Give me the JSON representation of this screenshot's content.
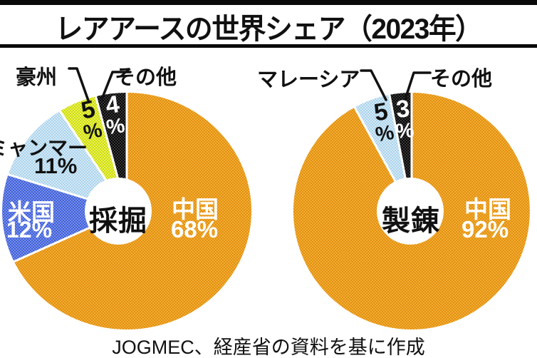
{
  "title": "レアアースの世界シェア（2023年）",
  "source": "JOGMEC、経産省の資料を基に作成",
  "colors": {
    "orange_base": "#F5AE35",
    "orange_dot": "#DE8E0E",
    "blue_base": "#7B92E8",
    "blue_dot": "#3A5BD9",
    "lightblue_base": "#D8ECF8",
    "lightblue_dot": "#A6D0EA",
    "yellow_base": "#EFF463",
    "yellow_dot": "#C8D900",
    "black_base": "#3C3C3C",
    "black_dot": "#000000",
    "text_white": "#ffffff",
    "text_black": "#111111",
    "separator": "#ffffff"
  },
  "chart_data": [
    {
      "type": "pie",
      "center_label": "採掘",
      "slices": [
        {
          "label": "中国",
          "value": 68,
          "pct_text": "68%",
          "color": "orange"
        },
        {
          "label": "米国",
          "value": 12,
          "pct_text": "12%",
          "color": "blue"
        },
        {
          "label": "ミャンマー",
          "value": 11,
          "pct_text": "11%",
          "color": "lightblue"
        },
        {
          "label": "豪州",
          "value": 5,
          "pct_num": "5",
          "pct_sym": "%",
          "color": "yellow"
        },
        {
          "label": "その他",
          "value": 4,
          "pct_num": "4",
          "pct_sym": "%",
          "color": "black"
        }
      ]
    },
    {
      "type": "pie",
      "center_label": "製錬",
      "slices": [
        {
          "label": "中国",
          "value": 92,
          "pct_text": "92%",
          "color": "orange"
        },
        {
          "label": "マレーシア",
          "value": 5,
          "pct_num": "5",
          "pct_sym": "%",
          "color": "lightblue"
        },
        {
          "label": "その他",
          "value": 3,
          "pct_num": "3",
          "pct_sym": "%",
          "color": "black"
        }
      ]
    }
  ]
}
